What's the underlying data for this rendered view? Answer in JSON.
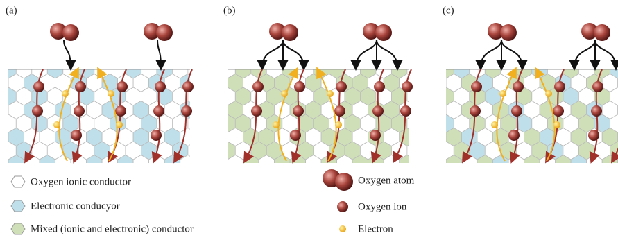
{
  "panels": {
    "a": {
      "label": "(a)"
    },
    "b": {
      "label": "(b)"
    },
    "c": {
      "label": "(c)"
    }
  },
  "legend": {
    "left": [
      "Oxygen ionic conductor",
      "Electronic conducyor",
      "Mixed (ionic and electronic) conductor"
    ],
    "right": [
      "Oxygen atom",
      "Oxygen ion",
      "Electron"
    ]
  }
}
